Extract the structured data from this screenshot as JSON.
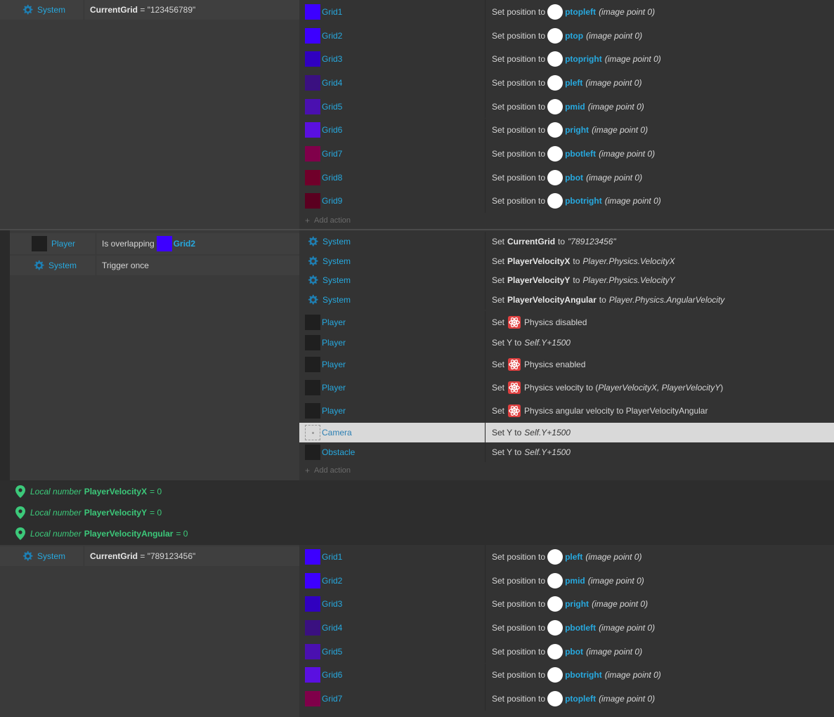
{
  "colors": {
    "accent_blue": "#27a9df",
    "green": "#3cc97a",
    "panel_bg": "#2d2d2d",
    "condition_bg": "#3f3f3f",
    "action_bg": "#333333",
    "selected_row": "#d9d9d9"
  },
  "event1": {
    "condition": {
      "object": "System",
      "text": "CurrentGrid",
      "op": " = ",
      "value": "\"123456789\""
    },
    "actions": [
      {
        "object": "Grid1",
        "color": "#3d00ff",
        "prefix": "Set position to",
        "point": "ptopleft",
        "suffix": "(image point 0)"
      },
      {
        "object": "Grid2",
        "color": "#3d00ff",
        "prefix": "Set position to",
        "point": "ptop",
        "suffix": "(image point 0)"
      },
      {
        "object": "Grid3",
        "color": "#3000c0",
        "prefix": "Set position to",
        "point": "ptopright",
        "suffix": "(image point 0)"
      },
      {
        "object": "Grid4",
        "color": "#3a1080",
        "prefix": "Set position to",
        "point": "pleft",
        "suffix": "(image point 0)"
      },
      {
        "object": "Grid5",
        "color": "#4a10b0",
        "prefix": "Set position to",
        "point": "pmid",
        "suffix": "(image point 0)"
      },
      {
        "object": "Grid6",
        "color": "#5a10e0",
        "prefix": "Set position to",
        "point": "pright",
        "suffix": "(image point 0)"
      },
      {
        "object": "Grid7",
        "color": "#80004a",
        "prefix": "Set position to",
        "point": "pbotleft",
        "suffix": "(image point 0)"
      },
      {
        "object": "Grid8",
        "color": "#70002a",
        "prefix": "Set position to",
        "point": "pbot",
        "suffix": "(image point 0)"
      },
      {
        "object": "Grid9",
        "color": "#5a0020",
        "prefix": "Set position to",
        "point": "pbotright",
        "suffix": "(image point 0)"
      }
    ],
    "add_action": "Add action"
  },
  "event2": {
    "condition1": {
      "object": "Player",
      "text": "Is overlapping",
      "target": "Grid2"
    },
    "condition2": {
      "object": "System",
      "text": "Trigger once"
    },
    "actions": [
      {
        "object": "System",
        "kind": "system",
        "set": "Set",
        "var": "CurrentGrid",
        "to": "to",
        "value": "\"789123456\""
      },
      {
        "object": "System",
        "kind": "system",
        "set": "Set",
        "var": "PlayerVelocityX",
        "to": "to",
        "value": "Player.Physics.VelocityX"
      },
      {
        "object": "System",
        "kind": "system",
        "set": "Set",
        "var": "PlayerVelocityY",
        "to": "to",
        "value": "Player.Physics.VelocityY"
      },
      {
        "object": "System",
        "kind": "system",
        "set": "Set",
        "var": "PlayerVelocityAngular",
        "to": "to",
        "value": "Player.Physics.AngularVelocity"
      },
      {
        "object": "Player",
        "kind": "physics",
        "set": "Set",
        "text": "Physics disabled"
      },
      {
        "object": "Player",
        "kind": "sety",
        "text": "Set Y to",
        "value": "Self.Y+1500"
      },
      {
        "object": "Player",
        "kind": "physics",
        "set": "Set",
        "text": "Physics enabled"
      },
      {
        "object": "Player",
        "kind": "physics-vel",
        "set": "Set",
        "text": "Physics velocity to (",
        "v1": "PlayerVelocityX",
        "sep": ", ",
        "v2": "PlayerVelocityY",
        "close": ")"
      },
      {
        "object": "Player",
        "kind": "physics",
        "set": "Set",
        "text": "Physics angular velocity to PlayerVelocityAngular"
      },
      {
        "object": "Camera",
        "kind": "sety",
        "text": "Set Y to",
        "value": "Self.Y+1500"
      },
      {
        "object": "Obstacle",
        "kind": "sety",
        "text": "Set Y to",
        "value": "Self.Y+1500"
      }
    ],
    "add_action": "Add action"
  },
  "locals": [
    {
      "prefix": "Local number",
      "name": "PlayerVelocityX",
      "value": "= 0"
    },
    {
      "prefix": "Local number",
      "name": "PlayerVelocityY",
      "value": "= 0"
    },
    {
      "prefix": "Local number",
      "name": "PlayerVelocityAngular",
      "value": "= 0"
    }
  ],
  "event3": {
    "condition": {
      "object": "System",
      "text": "CurrentGrid",
      "op": " = ",
      "value": "\"789123456\""
    },
    "actions": [
      {
        "object": "Grid1",
        "color": "#3d00ff",
        "prefix": "Set position to",
        "point": "pleft",
        "suffix": "(image point 0)"
      },
      {
        "object": "Grid2",
        "color": "#3d00ff",
        "prefix": "Set position to",
        "point": "pmid",
        "suffix": "(image point 0)"
      },
      {
        "object": "Grid3",
        "color": "#3000c0",
        "prefix": "Set position to",
        "point": "pright",
        "suffix": "(image point 0)"
      },
      {
        "object": "Grid4",
        "color": "#3a1080",
        "prefix": "Set position to",
        "point": "pbotleft",
        "suffix": "(image point 0)"
      },
      {
        "object": "Grid5",
        "color": "#4a10b0",
        "prefix": "Set position to",
        "point": "pbot",
        "suffix": "(image point 0)"
      },
      {
        "object": "Grid6",
        "color": "#5a10e0",
        "prefix": "Set position to",
        "point": "pbotright",
        "suffix": "(image point 0)"
      },
      {
        "object": "Grid7",
        "color": "#80004a",
        "prefix": "Set position to",
        "point": "ptopleft",
        "suffix": "(image point 0)"
      }
    ]
  }
}
